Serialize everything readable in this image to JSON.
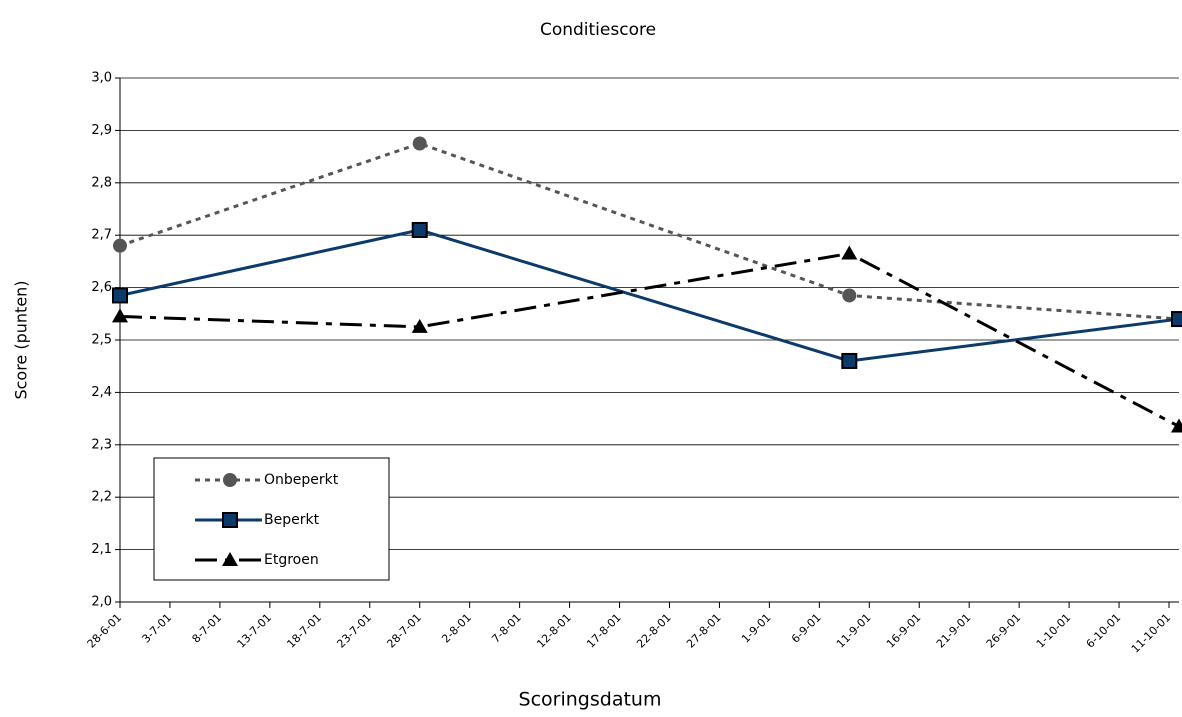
{
  "chart_data": {
    "type": "line",
    "title": "Conditiescore",
    "xlabel": "Scoringsdatum",
    "ylabel": "Score (punten)",
    "x": [
      "28-6-01",
      "28-7-01",
      "9-9-01",
      "12-10-01"
    ],
    "xlim": [
      "28-6-01",
      "12-10-01"
    ],
    "xticks": [
      "28-6-01",
      "3-7-01",
      "8-7-01",
      "13-7-01",
      "18-7-01",
      "23-7-01",
      "28-7-01",
      "2-8-01",
      "7-8-01",
      "12-8-01",
      "17-8-01",
      "22-8-01",
      "27-8-01",
      "1-9-01",
      "6-9-01",
      "11-9-01",
      "16-9-01",
      "21-9-01",
      "26-9-01",
      "1-10-01",
      "6-10-01",
      "11-10-01"
    ],
    "ylim": [
      2.0,
      3.0
    ],
    "yticks": [
      {
        "value": 2.0,
        "label": "2,0"
      },
      {
        "value": 2.1,
        "label": "2,1"
      },
      {
        "value": 2.2,
        "label": "2,2"
      },
      {
        "value": 2.3,
        "label": "2,3"
      },
      {
        "value": 2.4,
        "label": "2,4"
      },
      {
        "value": 2.5,
        "label": "2,5"
      },
      {
        "value": 2.6,
        "label": "2,6"
      },
      {
        "value": 2.7,
        "label": "2,7"
      },
      {
        "value": 2.8,
        "label": "2,8"
      },
      {
        "value": 2.9,
        "label": "2,9"
      },
      {
        "value": 3.0,
        "label": "3,0"
      }
    ],
    "grid": true,
    "series": [
      {
        "name": "Onbeperkt",
        "color": "#555555",
        "marker": "circle",
        "dash": "5,5",
        "values": [
          2.68,
          2.875,
          2.585,
          2.54
        ]
      },
      {
        "name": "Beperkt",
        "color": "#0b3a6b",
        "marker": "square",
        "dash": "none",
        "values": [
          2.585,
          2.71,
          2.46,
          2.54
        ]
      },
      {
        "name": "Etgroen",
        "color": "#000000",
        "marker": "triangle",
        "dash": "22,8,6,8",
        "values": [
          2.545,
          2.525,
          2.665,
          2.335
        ]
      }
    ]
  }
}
